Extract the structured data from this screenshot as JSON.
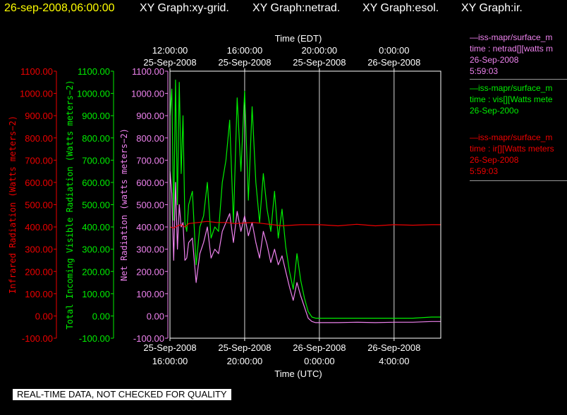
{
  "header": {
    "datetime": "26-sep-2008,06:00:00",
    "graphs": [
      "XY Graph:xy-grid.",
      "XY Graph:netrad.",
      "XY Graph:esol.",
      "XY Graph:ir."
    ]
  },
  "legend": [
    {
      "source": "—iss-mapr/surface_m",
      "var": "time : netrad[][watts m",
      "date": "26-Sep-2008",
      "time": "5:59:03",
      "color": "#ee82ee"
    },
    {
      "source": "—iss-mapr/surface_m",
      "var": "time : vis[][Watts mete",
      "date": "26-Sep-200o",
      "time": "",
      "color": "#00ee00"
    },
    {
      "source": "—iss-mapr/surface_m",
      "var": "time : ir[][Watts meters",
      "date": "26-Sep-2008",
      "time": "5:59:03",
      "color": "#ee0000"
    }
  ],
  "qa_banner": "REAL-TIME DATA, NOT CHECKED FOR QUALITY",
  "colors": {
    "infrared": "#ee0000",
    "visible": "#00ee00",
    "net": "#ee82ee",
    "axes": "#ffffff",
    "grid": "#ffffff",
    "header_date": "#ffff00"
  },
  "chart_data": {
    "type": "line",
    "top_axis": {
      "label": "Time (EDT)",
      "ticks": [
        {
          "x": 16,
          "l1": "12:00:00",
          "l2": "25-Sep-2008"
        },
        {
          "x": 20,
          "l1": "16:00:00",
          "l2": "25-Sep-2008"
        },
        {
          "x": 24,
          "l1": "20:00:00",
          "l2": "25-Sep-2008"
        },
        {
          "x": 28,
          "l1": "0:00:00",
          "l2": "26-Sep-2008"
        }
      ]
    },
    "bottom_axis": {
      "label": "Time (UTC)",
      "ticks": [
        {
          "x": 16,
          "l1": "25-Sep-2008",
          "l2": "16:00:00"
        },
        {
          "x": 20,
          "l1": "25-Sep-2008",
          "l2": "20:00:00"
        },
        {
          "x": 24,
          "l1": "26-Sep-2008",
          "l2": "0:00:00"
        },
        {
          "x": 28,
          "l1": "26-Sep-2008",
          "l2": "4:00:00"
        }
      ]
    },
    "xlim": [
      16,
      30.5
    ],
    "ylim": [
      -100,
      1100
    ],
    "y_ticks": [
      "-100.00",
      "0.00",
      "100.00",
      "200.00",
      "300.00",
      "400.00",
      "500.00",
      "600.00",
      "700.00",
      "800.00",
      "900.00",
      "1000.00",
      "1100.00"
    ],
    "y_axes": [
      {
        "label": "Infrared Radiation (Watts meters−2)",
        "color": "#ee0000"
      },
      {
        "label": "Total Incoming Visible Radiation (Watts meters−2)",
        "color": "#00ee00"
      },
      {
        "label": "Net Radiation (watts meters−2)",
        "color": "#ee82ee"
      }
    ],
    "grid": true,
    "series": [
      {
        "key": "visible",
        "x": [
          16.0,
          16.1,
          16.2,
          16.3,
          16.4,
          16.5,
          16.6,
          16.7,
          16.8,
          16.9,
          17.0,
          17.2,
          17.4,
          17.6,
          17.8,
          18.0,
          18.2,
          18.4,
          18.6,
          18.8,
          19.0,
          19.2,
          19.4,
          19.6,
          19.8,
          20.0,
          20.2,
          20.4,
          20.6,
          20.8,
          21.0,
          21.2,
          21.4,
          21.6,
          21.8,
          22.0,
          22.2,
          22.4,
          22.6,
          22.8,
          23.0,
          23.2,
          23.4,
          23.6,
          23.8,
          24.0,
          25.0,
          26.0,
          27.0,
          28.0,
          29.0,
          30.0,
          30.5
        ],
        "y": [
          900,
          1020,
          430,
          1060,
          500,
          1050,
          640,
          900,
          420,
          380,
          500,
          560,
          230,
          400,
          450,
          600,
          350,
          400,
          380,
          600,
          700,
          880,
          420,
          980,
          650,
          1010,
          520,
          940,
          600,
          420,
          640,
          480,
          380,
          560,
          350,
          480,
          310,
          200,
          120,
          280,
          160,
          80,
          20,
          -5,
          -10,
          -10,
          -10,
          -10,
          -10,
          -10,
          -10,
          -5,
          -5
        ]
      },
      {
        "key": "net",
        "x": [
          16.0,
          16.1,
          16.2,
          16.3,
          16.4,
          16.5,
          16.6,
          16.7,
          16.8,
          16.9,
          17.0,
          17.2,
          17.4,
          17.6,
          17.8,
          18.0,
          18.2,
          18.4,
          18.6,
          18.8,
          19.0,
          19.2,
          19.4,
          19.6,
          19.8,
          20.0,
          20.2,
          20.4,
          20.6,
          20.8,
          21.0,
          21.2,
          21.4,
          21.6,
          21.8,
          22.0,
          22.2,
          22.4,
          22.6,
          22.8,
          23.0,
          23.2,
          23.4,
          23.6,
          23.8,
          24.0,
          25.0,
          26.0,
          27.0,
          28.0,
          29.0,
          30.0,
          30.5
        ],
        "y": [
          650,
          550,
          250,
          600,
          300,
          500,
          400,
          420,
          250,
          260,
          330,
          350,
          150,
          280,
          330,
          400,
          260,
          300,
          280,
          380,
          420,
          460,
          330,
          470,
          380,
          450,
          360,
          420,
          330,
          260,
          380,
          320,
          240,
          300,
          230,
          270,
          200,
          130,
          70,
          150,
          90,
          40,
          -10,
          -25,
          -30,
          -30,
          -30,
          -28,
          -30,
          -28,
          -28,
          -25,
          -25
        ]
      },
      {
        "key": "infrared",
        "x": [
          16.0,
          16.2,
          16.4,
          16.6,
          16.8,
          17.0,
          17.5,
          18.0,
          18.5,
          19.0,
          19.5,
          20.0,
          20.5,
          21.0,
          21.5,
          22.0,
          23.0,
          24.0,
          25.0,
          26.0,
          27.0,
          28.0,
          29.0,
          30.0,
          30.5
        ],
        "y": [
          400,
          395,
          405,
          410,
          400,
          415,
          420,
          425,
          420,
          420,
          415,
          418,
          420,
          415,
          410,
          405,
          410,
          410,
          405,
          412,
          405,
          410,
          408,
          410,
          410
        ]
      }
    ]
  }
}
